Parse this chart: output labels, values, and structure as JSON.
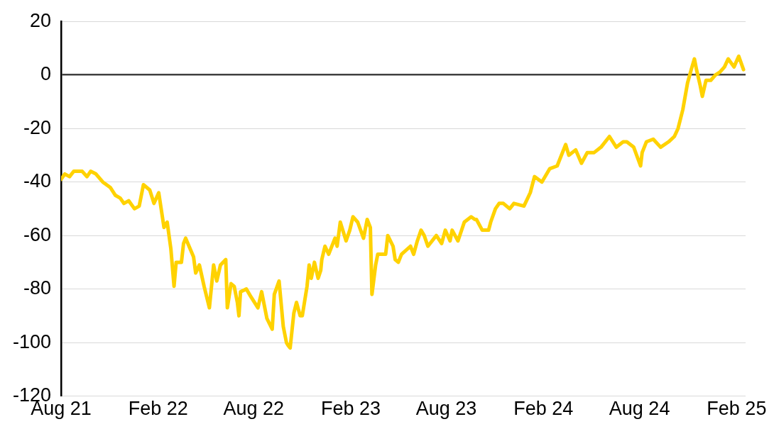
{
  "chart_data": {
    "type": "line",
    "x": [
      "2021-08-01",
      "2021-08-08",
      "2021-08-17",
      "2021-08-25",
      "2021-09-10",
      "2021-09-19",
      "2021-09-26",
      "2021-10-06",
      "2021-10-19",
      "2021-11-02",
      "2021-11-12",
      "2021-11-21",
      "2021-11-28",
      "2021-12-07",
      "2021-12-18",
      "2021-12-27",
      "2022-01-04",
      "2022-01-16",
      "2022-01-24",
      "2022-02-02",
      "2022-02-12",
      "2022-02-18",
      "2022-02-25",
      "2022-03-03",
      "2022-03-07",
      "2022-03-17",
      "2022-03-21",
      "2022-03-25",
      "2022-04-09",
      "2022-04-13",
      "2022-04-20",
      "2022-04-29",
      "2022-05-09",
      "2022-05-17",
      "2022-05-23",
      "2022-05-30",
      "2022-06-09",
      "2022-06-12",
      "2022-06-19",
      "2022-06-25",
      "2022-07-01",
      "2022-07-04",
      "2022-07-07",
      "2022-07-18",
      "2022-07-27",
      "2022-08-09",
      "2022-08-16",
      "2022-08-26",
      "2022-09-05",
      "2022-09-09",
      "2022-09-18",
      "2022-09-26",
      "2022-10-02",
      "2022-10-05",
      "2022-10-09",
      "2022-10-16",
      "2022-10-21",
      "2022-10-28",
      "2022-11-01",
      "2022-11-10",
      "2022-11-14",
      "2022-11-18",
      "2022-11-24",
      "2022-12-01",
      "2022-12-06",
      "2022-12-08",
      "2022-12-14",
      "2022-12-21",
      "2023-01-02",
      "2023-01-06",
      "2023-01-12",
      "2023-01-23",
      "2023-01-30",
      "2023-02-05",
      "2023-02-14",
      "2023-02-25",
      "2023-03-04",
      "2023-03-10",
      "2023-03-13",
      "2023-03-20",
      "2023-03-24",
      "2023-04-02",
      "2023-04-08",
      "2023-04-12",
      "2023-04-22",
      "2023-04-26",
      "2023-05-02",
      "2023-05-08",
      "2023-05-25",
      "2023-05-31",
      "2023-06-07",
      "2023-06-14",
      "2023-06-20",
      "2023-06-27",
      "2023-07-13",
      "2023-07-23",
      "2023-07-30",
      "2023-08-08",
      "2023-08-12",
      "2023-08-23",
      "2023-09-04",
      "2023-09-17",
      "2023-09-24",
      "2023-09-27",
      "2023-10-08",
      "2023-10-20",
      "2023-10-24",
      "2023-11-02",
      "2023-11-09",
      "2023-11-17",
      "2023-11-29",
      "2023-12-07",
      "2023-12-26",
      "2024-01-07",
      "2024-01-15",
      "2024-01-29",
      "2024-02-13",
      "2024-02-27",
      "2024-03-14",
      "2024-03-20",
      "2024-04-02",
      "2024-04-13",
      "2024-04-24",
      "2024-05-07",
      "2024-05-20",
      "2024-06-05",
      "2024-06-18",
      "2024-07-01",
      "2024-07-08",
      "2024-07-21",
      "2024-08-03",
      "2024-08-06",
      "2024-08-14",
      "2024-08-27",
      "2024-09-10",
      "2024-09-25",
      "2024-10-06",
      "2024-10-13",
      "2024-10-22",
      "2024-10-31",
      "2024-11-07",
      "2024-11-13",
      "2024-11-17",
      "2024-11-24",
      "2024-11-28",
      "2024-12-05",
      "2024-12-14",
      "2024-12-23",
      "2024-12-31",
      "2025-01-09",
      "2025-01-16",
      "2025-01-27",
      "2025-02-05",
      "2025-02-14"
    ],
    "series": [
      {
        "color": "#ffd200",
        "values": [
          -39,
          -37,
          -38,
          -36,
          -36,
          -38,
          -36,
          -37,
          -40,
          -42,
          -45,
          -46,
          -48,
          -47,
          -50,
          -49,
          -41,
          -43,
          -48,
          -44,
          -57,
          -55,
          -65,
          -79,
          -70,
          -70,
          -63,
          -61,
          -68,
          -74,
          -71,
          -79,
          -87,
          -71,
          -77,
          -71,
          -69,
          -87,
          -78,
          -79,
          -85,
          -90,
          -81,
          -80,
          -83,
          -87,
          -81,
          -91,
          -95,
          -82,
          -77,
          -94,
          -100,
          -101,
          -102,
          -89,
          -85,
          -90,
          -90,
          -79,
          -71,
          -76,
          -70,
          -76,
          -73,
          -69,
          -64,
          -67,
          -61,
          -64,
          -55,
          -62,
          -58,
          -53,
          -55,
          -61,
          -54,
          -57,
          -82,
          -71,
          -67,
          -67,
          -67,
          -60,
          -64,
          -69,
          -70,
          -67,
          -64,
          -67,
          -62,
          -58,
          -60,
          -64,
          -60,
          -63,
          -58,
          -62,
          -58,
          -62,
          -55,
          -53,
          -54,
          -54,
          -58,
          -58,
          -55,
          -50,
          -48,
          -48,
          -50,
          -48,
          -49,
          -44,
          -38,
          -40,
          -35,
          -34,
          -26,
          -30,
          -28,
          -33,
          -29,
          -29,
          -27,
          -23,
          -27,
          -25,
          -25,
          -27,
          -34,
          -29,
          -25,
          -24,
          -27,
          -25,
          -23,
          -20,
          -13,
          -3,
          2,
          6,
          2,
          -4,
          -8,
          -2,
          -2,
          0,
          1,
          3,
          6,
          3,
          7,
          2
        ]
      }
    ],
    "xlim": [
      "2021-08-01",
      "2025-02-18"
    ],
    "xticks": [
      {
        "value": "2021-08-01",
        "label": "Aug 21"
      },
      {
        "value": "2022-02-01",
        "label": "Feb 22"
      },
      {
        "value": "2022-08-01",
        "label": "Aug 22"
      },
      {
        "value": "2023-02-01",
        "label": "Feb 23"
      },
      {
        "value": "2023-08-01",
        "label": "Aug 23"
      },
      {
        "value": "2024-02-01",
        "label": "Feb 24"
      },
      {
        "value": "2024-08-01",
        "label": "Aug 24"
      },
      {
        "value": "2025-02-01",
        "label": "Feb 25"
      }
    ],
    "ylim": [
      -120,
      20
    ],
    "yticks": [
      -120,
      -100,
      -80,
      -60,
      -40,
      -20,
      0,
      20
    ],
    "grid": "y",
    "legend": false,
    "marker": "none",
    "line_style": "solid"
  }
}
